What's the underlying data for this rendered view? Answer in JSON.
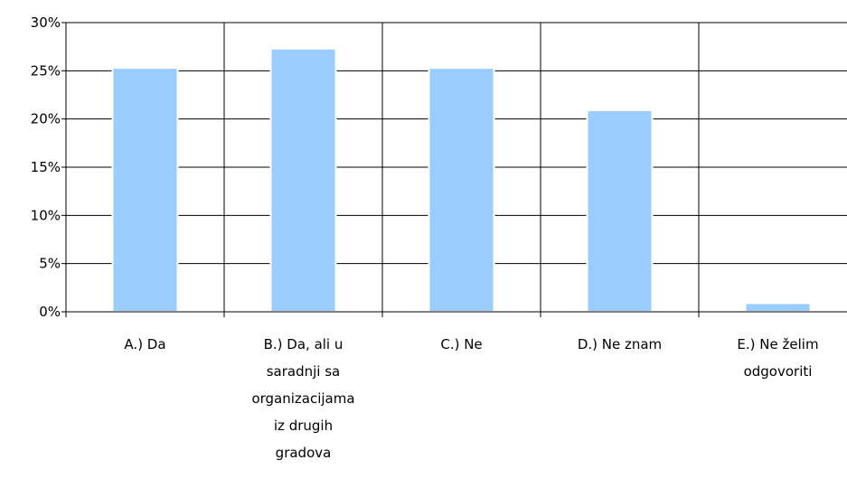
{
  "chart_data": {
    "type": "bar",
    "categories": [
      [
        "A.) Da"
      ],
      [
        "B.) Da, ali u",
        "saradnji sa",
        "organizacijama",
        "iz drugih",
        "gradova"
      ],
      [
        "C.) Ne"
      ],
      [
        "D.) Ne znam"
      ],
      [
        "E.) Ne želim",
        "odgovoriti"
      ]
    ],
    "values": [
      25.3,
      27.3,
      25.3,
      20.9,
      0.9
    ],
    "ylim": [
      0,
      30
    ],
    "yticks": [
      0,
      5,
      10,
      15,
      20,
      25,
      30
    ],
    "ytick_labels": [
      "0%",
      "5%",
      "10%",
      "15%",
      "20%",
      "25%",
      "30%"
    ],
    "grid": true,
    "bar_color": "#99ccff",
    "bar_edge_color": "#ffffff",
    "gridline_color": "#000000",
    "axis_color": "#000000"
  }
}
